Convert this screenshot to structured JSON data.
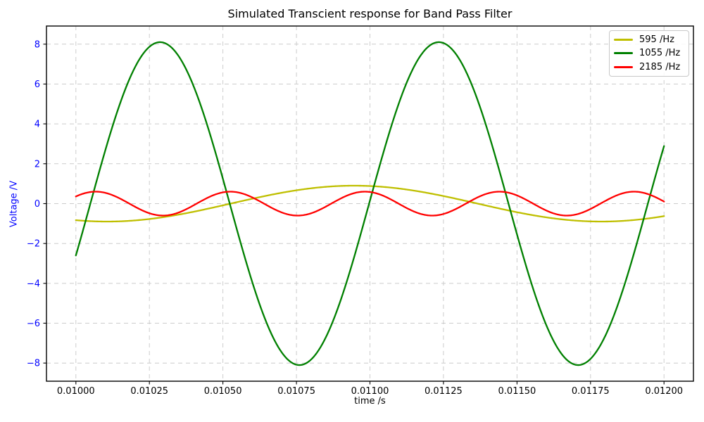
{
  "chart_data": {
    "type": "line",
    "title": "Simulated Transcient response for Band Pass Filter",
    "xlabel": "time /s",
    "ylabel": "Voltage /V",
    "xlim": [
      0.0099,
      0.0121
    ],
    "ylim": [
      -8.91,
      8.91
    ],
    "grid": true,
    "grid_style": "dashed",
    "legend_position": "upper right",
    "t_start": 0.01,
    "t_end": 0.012,
    "x_ticks": [
      {
        "value": 0.01,
        "label": "0.01000"
      },
      {
        "value": 0.01025,
        "label": "0.01025"
      },
      {
        "value": 0.0105,
        "label": "0.01050"
      },
      {
        "value": 0.01075,
        "label": "0.01075"
      },
      {
        "value": 0.011,
        "label": "0.01100"
      },
      {
        "value": 0.01125,
        "label": "0.01125"
      },
      {
        "value": 0.0115,
        "label": "0.01150"
      },
      {
        "value": 0.01175,
        "label": "0.01175"
      },
      {
        "value": 0.012,
        "label": "0.01200"
      }
    ],
    "y_ticks": [
      {
        "value": 8,
        "label": "8"
      },
      {
        "value": 6,
        "label": "6"
      },
      {
        "value": 4,
        "label": "4"
      },
      {
        "value": 2,
        "label": "2"
      },
      {
        "value": 0,
        "label": "0"
      },
      {
        "value": -2,
        "label": "−2"
      },
      {
        "value": -4,
        "label": "−4"
      },
      {
        "value": -6,
        "label": "−6"
      },
      {
        "value": -8,
        "label": "−8"
      }
    ],
    "series": [
      {
        "name": "595 /Hz",
        "color": "#bfbf00",
        "waveform": "sine",
        "amplitude_V": 0.9,
        "frequency_Hz": 595,
        "phase_rad": -1.6525,
        "value_at_t_start_V": -0.83,
        "value_at_t_end_V": -0.63,
        "first_min_t_s": 0.010106,
        "first_max_t_s": 0.010946
      },
      {
        "name": "1055 /Hz",
        "color": "#008000",
        "waveform": "sine",
        "amplitude_V": 8.1,
        "frequency_Hz": 1055,
        "phase_rad": -3.7825,
        "value_at_t_start_V": -2.6,
        "value_at_t_end_V": 2.9,
        "first_max_t_s": 0.010286,
        "first_min_t_s": 0.01076
      },
      {
        "name": "2185 /Hz",
        "color": "#ff0000",
        "waveform": "sine",
        "amplitude_V": 0.6,
        "frequency_Hz": 2185,
        "phase_rad": -4.6967,
        "value_at_t_start_V": 0.36,
        "value_at_t_end_V": 0.1,
        "first_max_t_s": 0.010068,
        "first_min_t_s": 0.010297
      }
    ],
    "colors": {
      "y_axis_text": "#0000ff",
      "x_axis_text": "#000000",
      "title_text": "#000000",
      "grid": "#cccccc",
      "spine": "#000000",
      "tick_mark": "#000000",
      "background": "#ffffff",
      "legend_border": "#c8c8c8"
    }
  }
}
